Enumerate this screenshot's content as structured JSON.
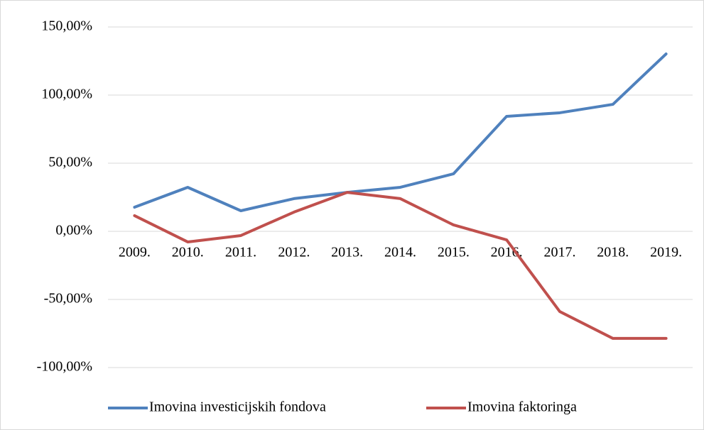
{
  "chart_data": {
    "type": "line",
    "categories": [
      "2009.",
      "2010.",
      "2011.",
      "2012.",
      "2013.",
      "2014.",
      "2015.",
      "2016.",
      "2017.",
      "2018.",
      "2019."
    ],
    "series": [
      {
        "name": "Imovina investicijskih fondova",
        "color": "#4f81bd",
        "values": [
          17.7,
          32.3,
          15.1,
          24,
          28.6,
          32.3,
          42.2,
          84.4,
          87,
          93.2,
          130.2
        ]
      },
      {
        "name": "Imovina faktoringa",
        "color": "#c0504d",
        "values": [
          11.5,
          -7.8,
          -3.1,
          14.1,
          28.6,
          24,
          4.7,
          -6.3,
          -58.9,
          -78.6,
          -78.6
        ]
      }
    ],
    "ylim": [
      -100,
      150
    ],
    "yticks": [
      {
        "value": -100,
        "label": "-100,00%"
      },
      {
        "value": -50,
        "label": "-50,00%"
      },
      {
        "value": 0,
        "label": "0,00%"
      },
      {
        "value": 50,
        "label": "50,00%"
      },
      {
        "value": 100,
        "label": "100,00%"
      },
      {
        "value": 150,
        "label": "150,00%"
      }
    ],
    "grid": true,
    "legend": "bottom"
  }
}
